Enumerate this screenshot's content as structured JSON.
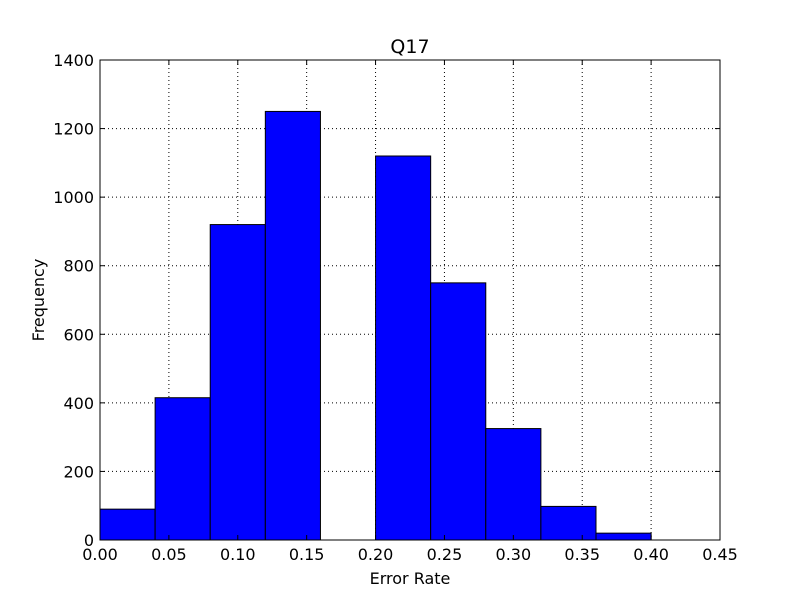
{
  "chart_data": {
    "type": "bar",
    "title": "Q17",
    "xlabel": "Error Rate",
    "ylabel": "Frequency",
    "xlim": [
      0.0,
      0.45
    ],
    "ylim": [
      0,
      1400
    ],
    "grid": true,
    "bar_color": "#0000ff",
    "bins": [
      {
        "x0": 0.0,
        "x1": 0.04,
        "value": 90
      },
      {
        "x0": 0.04,
        "x1": 0.08,
        "value": 415
      },
      {
        "x0": 0.08,
        "x1": 0.12,
        "value": 920
      },
      {
        "x0": 0.12,
        "x1": 0.16,
        "value": 1250
      },
      {
        "x0": 0.16,
        "x1": 0.2,
        "value": 0
      },
      {
        "x0": 0.2,
        "x1": 0.24,
        "value": 1120
      },
      {
        "x0": 0.24,
        "x1": 0.28,
        "value": 750
      },
      {
        "x0": 0.28,
        "x1": 0.32,
        "value": 325
      },
      {
        "x0": 0.32,
        "x1": 0.36,
        "value": 98
      },
      {
        "x0": 0.36,
        "x1": 0.4,
        "value": 20
      }
    ],
    "x_ticks": [
      "0.00",
      "0.05",
      "0.10",
      "0.15",
      "0.20",
      "0.25",
      "0.30",
      "0.35",
      "0.40",
      "0.45"
    ],
    "y_ticks": [
      "0",
      "200",
      "400",
      "600",
      "800",
      "1000",
      "1200",
      "1400"
    ]
  }
}
